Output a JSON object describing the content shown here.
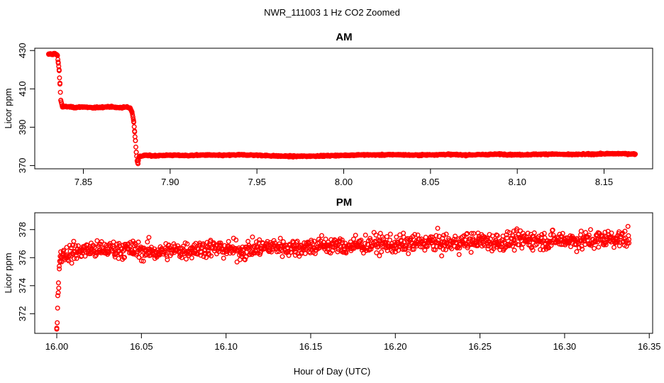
{
  "figure_title": "NWR_111003  1 Hz CO2 Zoomed",
  "xlabel": "Hour of Day (UTC)",
  "chart_data": [
    {
      "type": "scatter",
      "title": "AM",
      "ylabel": "Licor ppm",
      "xlim": [
        7.822,
        8.178
      ],
      "ylim": [
        368.3,
        431.2
      ],
      "xticks": [
        7.85,
        7.9,
        7.95,
        8.0,
        8.05,
        8.1,
        8.15
      ],
      "xtick_labels": [
        "7.85",
        "7.90",
        "7.95",
        "8.00",
        "8.05",
        "8.10",
        "8.15"
      ],
      "yticks": [
        370,
        390,
        410,
        430
      ],
      "ytick_labels": [
        "370",
        "390",
        "410",
        "430"
      ],
      "marker_color": "#ff0000",
      "x": [
        7.83,
        7.831,
        7.832,
        7.833,
        7.834,
        7.835,
        7.8355,
        7.836,
        7.8365,
        7.837,
        7.838,
        7.84,
        7.845,
        7.85,
        7.855,
        7.86,
        7.865,
        7.87,
        7.875,
        7.877,
        7.878,
        7.879,
        7.8795,
        7.88,
        7.8805,
        7.881,
        7.8815,
        7.882,
        7.885,
        7.89,
        7.9,
        7.91,
        7.92,
        7.93,
        7.94,
        7.95,
        7.96,
        7.97,
        7.98,
        7.99,
        8.0,
        8.01,
        8.02,
        8.03,
        8.04,
        8.05,
        8.06,
        8.07,
        8.08,
        8.09,
        8.1,
        8.11,
        8.12,
        8.13,
        8.14,
        8.15,
        8.16,
        8.168
      ],
      "y": [
        428.0,
        428.3,
        427.9,
        428.5,
        428.1,
        427.6,
        424.0,
        420.0,
        413.0,
        404.0,
        400.5,
        400.8,
        400.3,
        400.6,
        400.1,
        400.4,
        400.7,
        400.2,
        400.5,
        400.0,
        398.0,
        393.0,
        388.0,
        383.0,
        377.0,
        372.5,
        371.0,
        374.5,
        375.3,
        375.1,
        375.4,
        375.2,
        375.5,
        375.3,
        375.6,
        375.4,
        375.0,
        374.8,
        374.9,
        375.1,
        375.3,
        375.6,
        375.5,
        375.7,
        375.4,
        375.6,
        375.8,
        375.5,
        375.7,
        375.9,
        375.6,
        375.8,
        376.0,
        375.7,
        375.9,
        376.1,
        376.2,
        376.0
      ]
    },
    {
      "type": "scatter",
      "title": "PM",
      "ylabel": "Licor ppm",
      "xlim": [
        15.987,
        16.352
      ],
      "ylim": [
        370.6,
        379.2
      ],
      "xticks": [
        16.0,
        16.05,
        16.1,
        16.15,
        16.2,
        16.25,
        16.3,
        16.35
      ],
      "xtick_labels": [
        "16.00",
        "16.05",
        "16.10",
        "16.15",
        "16.20",
        "16.25",
        "16.30",
        "16.35"
      ],
      "yticks": [
        372,
        374,
        376,
        378
      ],
      "ytick_labels": [
        "372",
        "374",
        "376",
        "378"
      ],
      "marker_color": "#ff0000",
      "x": [
        16.0,
        16.0005,
        16.001,
        16.0015,
        16.002,
        16.004,
        16.006,
        16.01,
        16.015,
        16.02,
        16.025,
        16.03,
        16.04,
        16.05,
        16.06,
        16.07,
        16.08,
        16.09,
        16.1,
        16.11,
        16.12,
        16.13,
        16.14,
        16.15,
        16.16,
        16.17,
        16.18,
        16.19,
        16.2,
        16.21,
        16.22,
        16.23,
        16.24,
        16.25,
        16.26,
        16.27,
        16.28,
        16.29,
        16.3,
        16.31,
        16.32,
        16.33,
        16.338
      ],
      "y": [
        370.9,
        372.4,
        374.2,
        375.2,
        376.1,
        376.3,
        376.2,
        376.4,
        376.5,
        376.6,
        376.5,
        376.6,
        376.6,
        376.5,
        376.4,
        376.5,
        376.6,
        376.7,
        376.6,
        376.5,
        376.7,
        376.8,
        376.7,
        376.8,
        376.9,
        376.8,
        376.9,
        377.0,
        376.9,
        377.0,
        377.1,
        377.0,
        377.1,
        377.2,
        377.1,
        377.2,
        377.3,
        377.2,
        377.3,
        377.2,
        377.3,
        377.4,
        377.3
      ]
    }
  ]
}
